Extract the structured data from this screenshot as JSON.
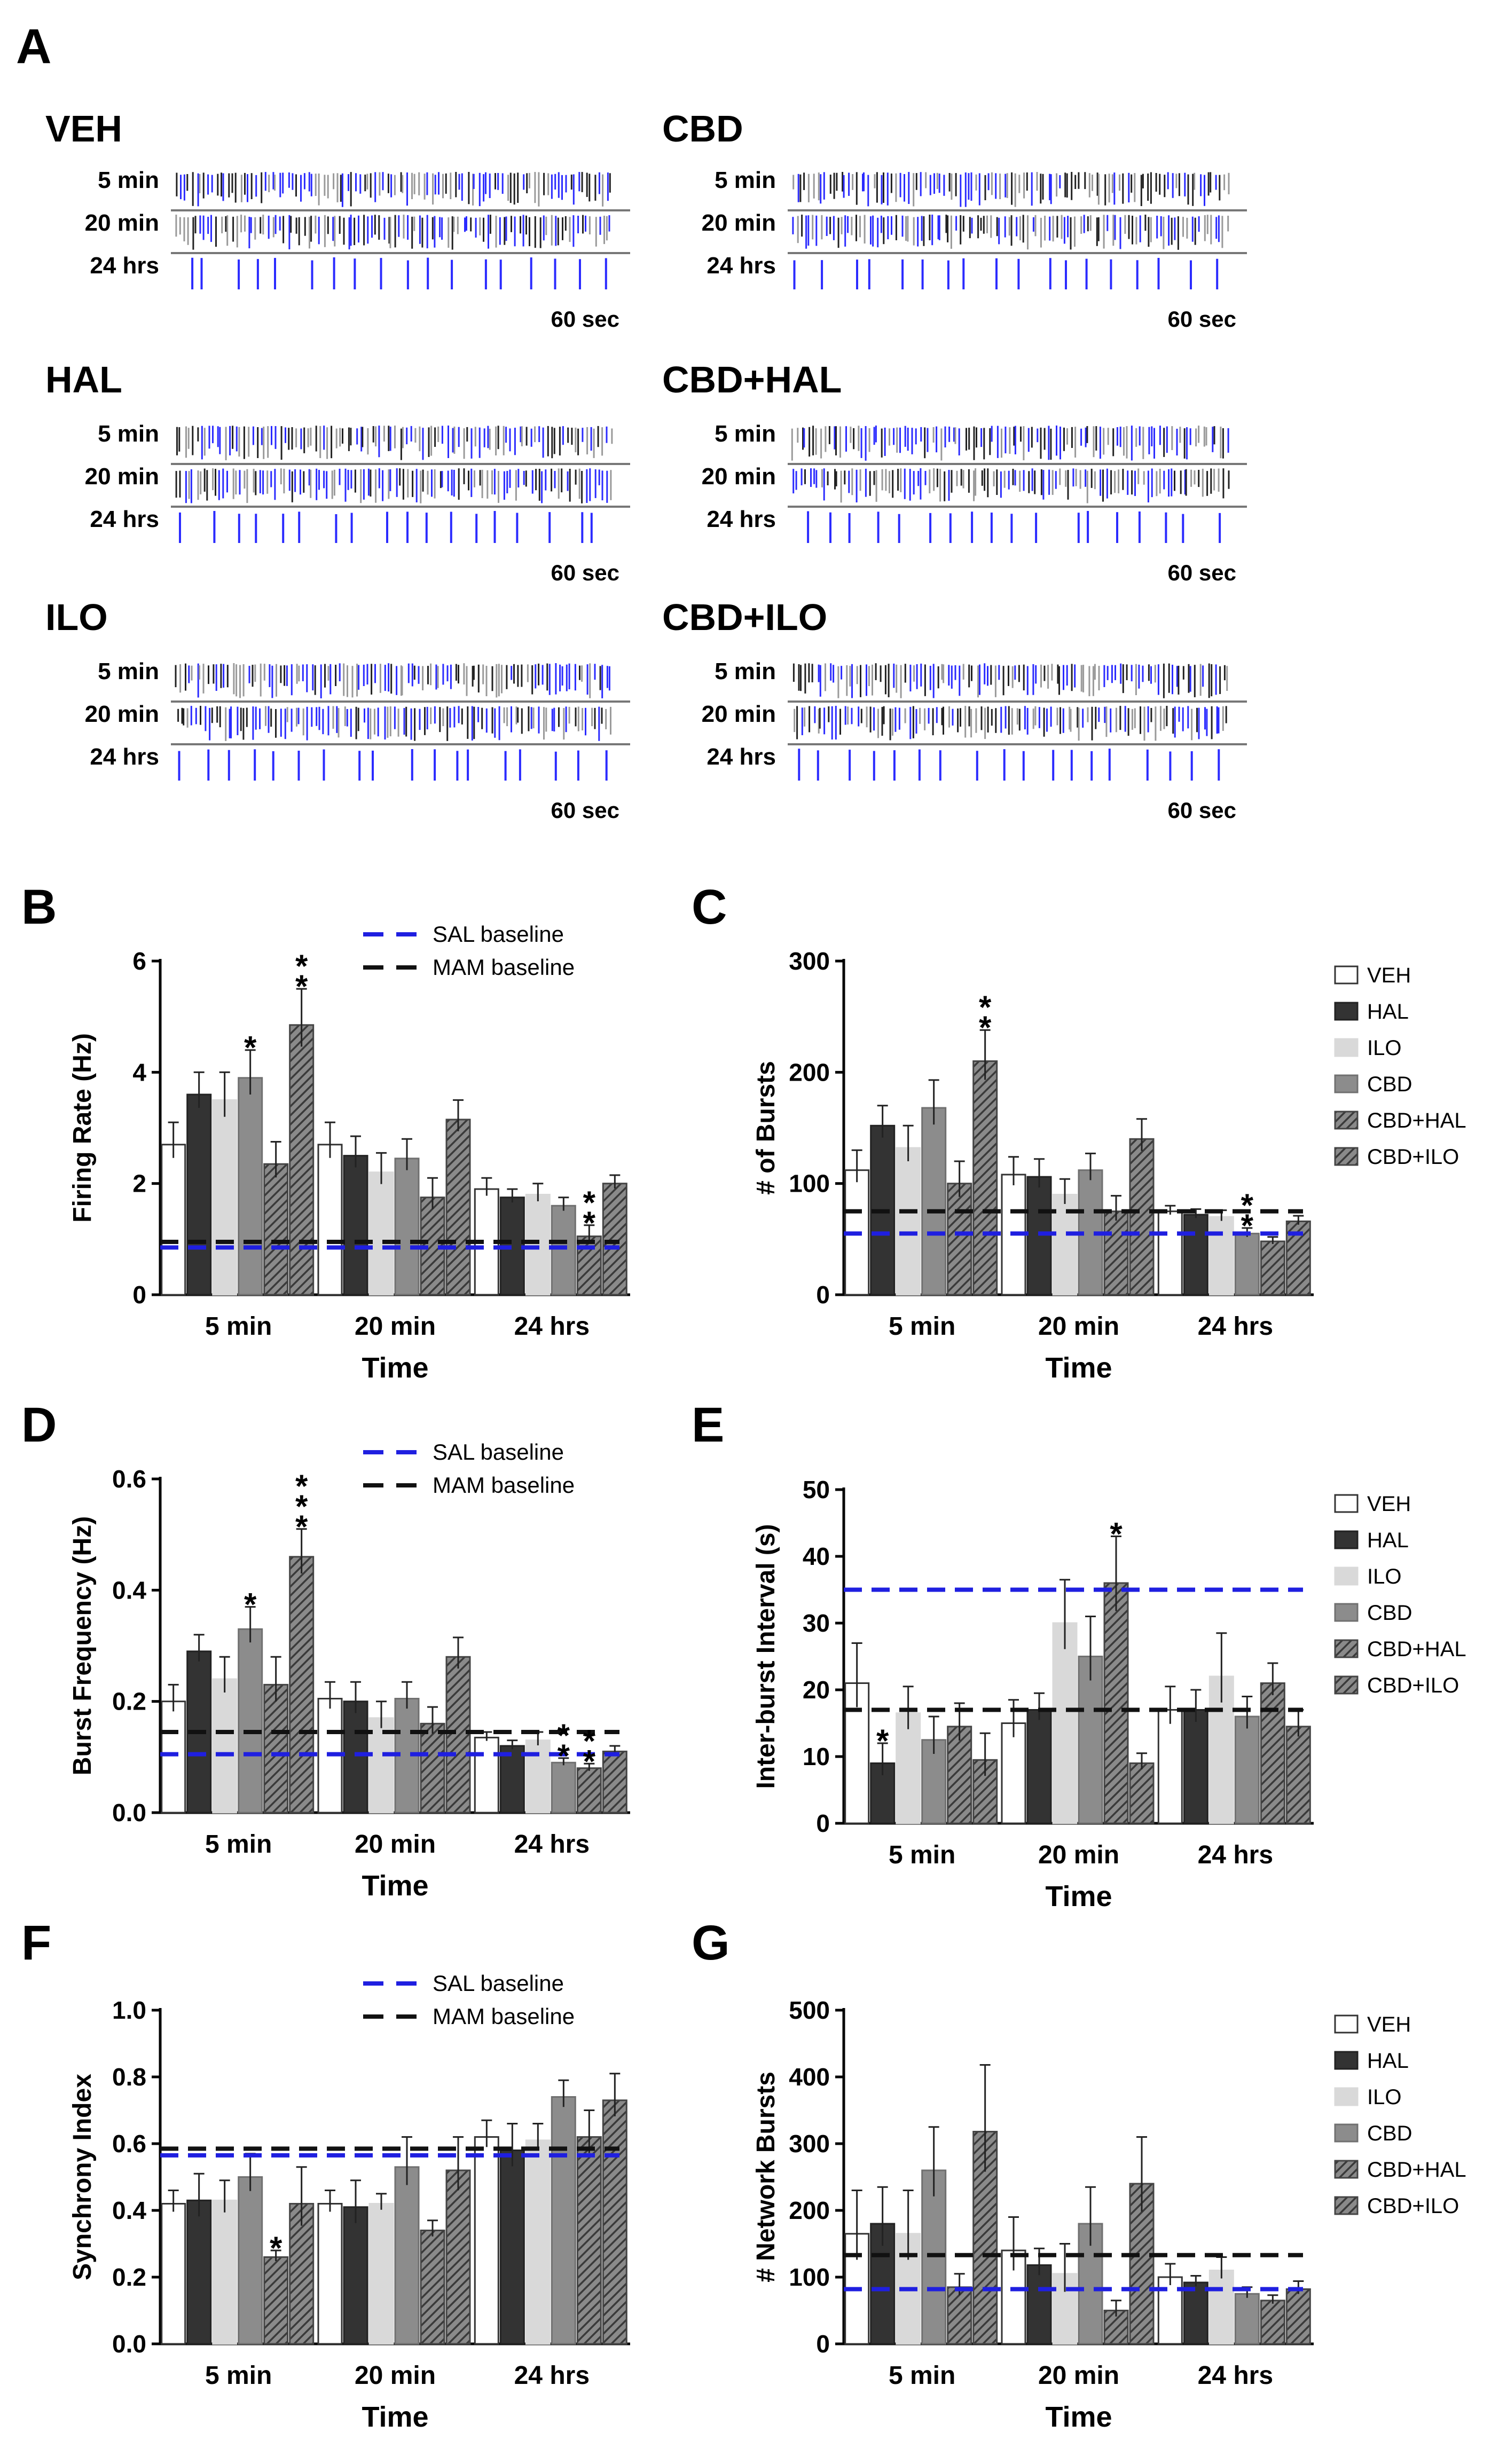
{
  "colors": {
    "sal": "#1f1fe0",
    "mam": "#111111",
    "raster_blue": "#2b2bff",
    "raster_black": "#222222",
    "raster_gray": "#9a9a9a"
  },
  "groups": [
    "VEH",
    "HAL",
    "ILO",
    "CBD",
    "CBD+HAL",
    "CBD+ILO"
  ],
  "raster": {
    "label": "A",
    "row_labels": [
      "5 min",
      "20 min",
      "24 hrs"
    ],
    "scale_label": "60 sec",
    "panels": [
      {
        "title": "VEH"
      },
      {
        "title": "CBD"
      },
      {
        "title": "HAL"
      },
      {
        "title": "CBD+HAL"
      },
      {
        "title": "ILO"
      },
      {
        "title": "CBD+ILO"
      }
    ]
  },
  "chart_data": [
    {
      "panel": "B",
      "type": "bar",
      "categories": [
        "5 min",
        "20 min",
        "24 hrs"
      ],
      "xlabel": "Time",
      "ylabel": "Firing Rate (Hz)",
      "ylim": [
        0,
        6
      ],
      "yticks": [
        "0",
        "2",
        "4",
        "6"
      ],
      "series": [
        {
          "name": "VEH",
          "values": [
            2.7,
            2.7,
            1.9
          ],
          "err": [
            0.4,
            0.4,
            0.2
          ]
        },
        {
          "name": "HAL",
          "values": [
            3.6,
            2.5,
            1.75
          ],
          "err": [
            0.4,
            0.35,
            0.15
          ]
        },
        {
          "name": "ILO",
          "values": [
            3.5,
            2.2,
            1.8
          ],
          "err": [
            0.5,
            0.35,
            0.2
          ]
        },
        {
          "name": "CBD",
          "values": [
            3.9,
            2.45,
            1.6
          ],
          "err": [
            0.5,
            0.35,
            0.15
          ]
        },
        {
          "name": "CBD+HAL",
          "values": [
            2.35,
            1.75,
            1.05
          ],
          "err": [
            0.4,
            0.35,
            0.2
          ]
        },
        {
          "name": "CBD+ILO",
          "values": [
            4.85,
            3.15,
            2.0
          ],
          "err": [
            0.65,
            0.35,
            0.15
          ]
        }
      ],
      "baselines": [
        {
          "name": "SAL baseline",
          "value": 0.85
        },
        {
          "name": "MAM baseline",
          "value": 0.95
        }
      ],
      "annotations": [
        {
          "group": 0,
          "series": 3,
          "text": "*"
        },
        {
          "group": 0,
          "series": 5,
          "text": "*\n*"
        },
        {
          "group": 2,
          "series": 4,
          "text": "*\n*"
        }
      ],
      "legend": "top-center"
    },
    {
      "panel": "C",
      "type": "bar",
      "categories": [
        "5 min",
        "20 min",
        "24 hrs"
      ],
      "xlabel": "Time",
      "ylabel": "# of Bursts",
      "ylim": [
        0,
        300
      ],
      "yticks": [
        "0",
        "100",
        "200",
        "300"
      ],
      "series": [
        {
          "name": "VEH",
          "values": [
            112,
            108,
            75
          ],
          "err": [
            18,
            16,
            5
          ]
        },
        {
          "name": "HAL",
          "values": [
            152,
            106,
            72
          ],
          "err": [
            18,
            16,
            5
          ]
        },
        {
          "name": "ILO",
          "values": [
            132,
            90,
            70
          ],
          "err": [
            20,
            14,
            6
          ]
        },
        {
          "name": "CBD",
          "values": [
            168,
            112,
            55
          ],
          "err": [
            25,
            15,
            5
          ]
        },
        {
          "name": "CBD+HAL",
          "values": [
            100,
            75,
            48
          ],
          "err": [
            20,
            14,
            4
          ]
        },
        {
          "name": "CBD+ILO",
          "values": [
            210,
            140,
            66
          ],
          "err": [
            28,
            18,
            5
          ]
        }
      ],
      "baselines": [
        {
          "name": "SAL baseline",
          "value": 55
        },
        {
          "name": "MAM baseline",
          "value": 75
        }
      ],
      "annotations": [
        {
          "group": 0,
          "series": 5,
          "text": "*\n*"
        },
        {
          "group": 2,
          "series": 3,
          "text": "*\n*"
        }
      ],
      "legend": "right"
    },
    {
      "panel": "D",
      "type": "bar",
      "categories": [
        "5 min",
        "20 min",
        "24 hrs"
      ],
      "xlabel": "Time",
      "ylabel": "Burst Frequency (Hz)",
      "ylim": [
        0,
        0.6
      ],
      "yticks": [
        "0.0",
        "0.2",
        "0.4",
        "0.6"
      ],
      "series": [
        {
          "name": "VEH",
          "values": [
            0.2,
            0.205,
            0.135
          ],
          "err": [
            0.03,
            0.03,
            0.01
          ]
        },
        {
          "name": "HAL",
          "values": [
            0.29,
            0.2,
            0.12
          ],
          "err": [
            0.03,
            0.035,
            0.01
          ]
        },
        {
          "name": "ILO",
          "values": [
            0.24,
            0.17,
            0.13
          ],
          "err": [
            0.04,
            0.03,
            0.015
          ]
        },
        {
          "name": "CBD",
          "values": [
            0.33,
            0.205,
            0.09
          ],
          "err": [
            0.04,
            0.03,
            0.008
          ]
        },
        {
          "name": "CBD+HAL",
          "values": [
            0.23,
            0.16,
            0.08
          ],
          "err": [
            0.05,
            0.03,
            0.008
          ]
        },
        {
          "name": "CBD+ILO",
          "values": [
            0.46,
            0.28,
            0.11
          ],
          "err": [
            0.05,
            0.035,
            0.01
          ]
        }
      ],
      "baselines": [
        {
          "name": "SAL baseline",
          "value": 0.105
        },
        {
          "name": "MAM baseline",
          "value": 0.145
        }
      ],
      "annotations": [
        {
          "group": 0,
          "series": 3,
          "text": "*"
        },
        {
          "group": 0,
          "series": 5,
          "text": "*\n*\n*"
        },
        {
          "group": 2,
          "series": 3,
          "text": "*\n*"
        },
        {
          "group": 2,
          "series": 4,
          "text": "*\n*"
        }
      ],
      "legend": "top-center"
    },
    {
      "panel": "E",
      "type": "bar",
      "categories": [
        "5 min",
        "20 min",
        "24 hrs"
      ],
      "xlabel": "Time",
      "ylabel": "Inter-burst Interval (s)",
      "ylim": [
        0,
        50
      ],
      "yticks": [
        "0",
        "10",
        "20",
        "30",
        "40",
        "50"
      ],
      "series": [
        {
          "name": "VEH",
          "values": [
            21,
            15,
            17
          ],
          "err": [
            6,
            3.5,
            3.5
          ]
        },
        {
          "name": "HAL",
          "values": [
            9,
            17,
            17
          ],
          "err": [
            3,
            2.5,
            3
          ]
        },
        {
          "name": "ILO",
          "values": [
            16.5,
            30,
            22
          ],
          "err": [
            4,
            6.5,
            6.5
          ]
        },
        {
          "name": "CBD",
          "values": [
            12.5,
            25,
            16
          ],
          "err": [
            3.5,
            6,
            3
          ]
        },
        {
          "name": "CBD+HAL",
          "values": [
            14.5,
            36,
            21
          ],
          "err": [
            3.5,
            7,
            3
          ]
        },
        {
          "name": "CBD+ILO",
          "values": [
            9.5,
            9,
            14.5
          ],
          "err": [
            4,
            1.5,
            2.5
          ]
        }
      ],
      "baselines": [
        {
          "name": "SAL baseline",
          "value": 35
        },
        {
          "name": "MAM baseline",
          "value": 17
        }
      ],
      "annotations": [
        {
          "group": 0,
          "series": 1,
          "text": "*"
        },
        {
          "group": 1,
          "series": 4,
          "text": "*"
        }
      ],
      "legend": "right"
    },
    {
      "panel": "F",
      "type": "bar",
      "categories": [
        "5 min",
        "20 min",
        "24 hrs"
      ],
      "xlabel": "Time",
      "ylabel": "Synchrony Index",
      "ylim": [
        0,
        1.0
      ],
      "yticks": [
        "0.0",
        "0.2",
        "0.4",
        "0.6",
        "0.8",
        "1.0"
      ],
      "series": [
        {
          "name": "VEH",
          "values": [
            0.42,
            0.42,
            0.62
          ],
          "err": [
            0.04,
            0.04,
            0.05
          ]
        },
        {
          "name": "HAL",
          "values": [
            0.43,
            0.41,
            0.58
          ],
          "err": [
            0.08,
            0.08,
            0.08
          ]
        },
        {
          "name": "ILO",
          "values": [
            0.43,
            0.42,
            0.61
          ],
          "err": [
            0.06,
            0.03,
            0.05
          ]
        },
        {
          "name": "CBD",
          "values": [
            0.5,
            0.53,
            0.74
          ],
          "err": [
            0.07,
            0.09,
            0.05
          ]
        },
        {
          "name": "CBD+HAL",
          "values": [
            0.26,
            0.34,
            0.62
          ],
          "err": [
            0.02,
            0.03,
            0.08
          ]
        },
        {
          "name": "CBD+ILO",
          "values": [
            0.42,
            0.52,
            0.73
          ],
          "err": [
            0.11,
            0.1,
            0.08
          ]
        }
      ],
      "baselines": [
        {
          "name": "SAL baseline",
          "value": 0.565
        },
        {
          "name": "MAM baseline",
          "value": 0.585
        }
      ],
      "annotations": [
        {
          "group": 0,
          "series": 4,
          "text": "*"
        }
      ],
      "legend": "top-center"
    },
    {
      "panel": "G",
      "type": "bar",
      "categories": [
        "5 min",
        "20 min",
        "24 hrs"
      ],
      "xlabel": "Time",
      "ylabel": "# Network Bursts",
      "ylim": [
        0,
        500
      ],
      "yticks": [
        "0",
        "100",
        "200",
        "300",
        "400",
        "500"
      ],
      "series": [
        {
          "name": "VEH",
          "values": [
            165,
            140,
            100
          ],
          "err": [
            65,
            50,
            20
          ]
        },
        {
          "name": "HAL",
          "values": [
            180,
            118,
            92
          ],
          "err": [
            55,
            25,
            10
          ]
        },
        {
          "name": "ILO",
          "values": [
            165,
            105,
            110
          ],
          "err": [
            65,
            45,
            20
          ]
        },
        {
          "name": "CBD",
          "values": [
            260,
            180,
            75
          ],
          "err": [
            65,
            55,
            10
          ]
        },
        {
          "name": "CBD+HAL",
          "values": [
            85,
            50,
            65
          ],
          "err": [
            20,
            15,
            8
          ]
        },
        {
          "name": "CBD+ILO",
          "values": [
            318,
            240,
            82
          ],
          "err": [
            100,
            70,
            12
          ]
        }
      ],
      "baselines": [
        {
          "name": "SAL baseline",
          "value": 82
        },
        {
          "name": "MAM baseline",
          "value": 133
        }
      ],
      "annotations": [],
      "legend": "right"
    }
  ]
}
